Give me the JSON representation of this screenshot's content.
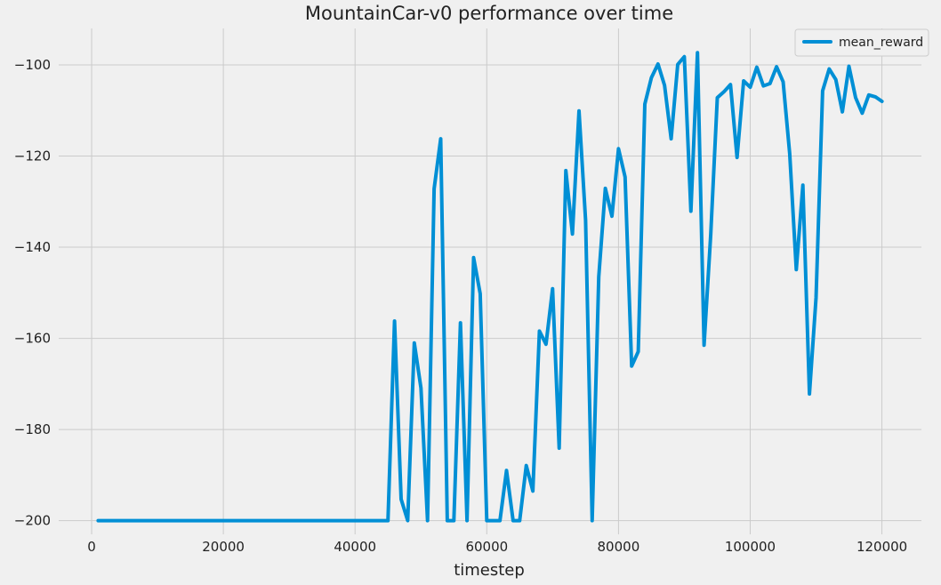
{
  "chart_data": {
    "type": "line",
    "title": "MountainCar-v0 performance over time",
    "xlabel": "timestep",
    "ylabel": "",
    "xlim": [
      -5000,
      126000
    ],
    "ylim": [
      -203,
      -92
    ],
    "grid": true,
    "legend": "top-right",
    "xticks": [
      0,
      20000,
      40000,
      60000,
      80000,
      100000,
      120000
    ],
    "yticks": [
      -200,
      -180,
      -160,
      -140,
      -120,
      -100
    ],
    "xtick_labels": [
      "0",
      "20000",
      "40000",
      "60000",
      "80000",
      "100000",
      "120000"
    ],
    "ytick_labels": [
      "−200",
      "−180",
      "−160",
      "−140",
      "−120",
      "−100"
    ],
    "series": [
      {
        "name": "mean_reward",
        "color": "#008fd5",
        "x": [
          1000,
          2000,
          3000,
          4000,
          5000,
          6000,
          7000,
          8000,
          9000,
          10000,
          11000,
          12000,
          13000,
          14000,
          15000,
          16000,
          17000,
          18000,
          19000,
          20000,
          21000,
          22000,
          23000,
          24000,
          25000,
          26000,
          27000,
          28000,
          29000,
          30000,
          31000,
          32000,
          33000,
          34000,
          35000,
          36000,
          37000,
          38000,
          39000,
          40000,
          41000,
          42000,
          43000,
          44000,
          45000,
          46000,
          47000,
          48000,
          49000,
          50000,
          51000,
          52000,
          53000,
          54000,
          55000,
          56000,
          57000,
          58000,
          59000,
          60000,
          61000,
          62000,
          63000,
          64000,
          65000,
          66000,
          67000,
          68000,
          69000,
          70000,
          71000,
          72000,
          73000,
          74000,
          75000,
          76000,
          77000,
          78000,
          79000,
          80000,
          81000,
          82000,
          83000,
          84000,
          85000,
          86000,
          87000,
          88000,
          89000,
          90000,
          91000,
          92000,
          93000,
          94000,
          95000,
          96000,
          97000,
          98000,
          99000,
          100000,
          101000,
          102000,
          103000,
          104000,
          105000,
          106000,
          107000,
          108000,
          109000,
          110000,
          111000,
          112000,
          113000,
          114000,
          115000,
          116000,
          117000,
          118000,
          119000,
          120000
        ],
        "y": [
          -200,
          -200,
          -200,
          -200,
          -200,
          -200,
          -200,
          -200,
          -200,
          -200,
          -200,
          -200,
          -200,
          -200,
          -200,
          -200,
          -200,
          -200,
          -200,
          -200,
          -200,
          -200,
          -200,
          -200,
          -200,
          -200,
          -200,
          -200,
          -200,
          -200,
          -200,
          -200,
          -200,
          -200,
          -200,
          -200,
          -200,
          -200,
          -200,
          -200,
          -200,
          -200,
          -200,
          -200,
          -200,
          -156.2,
          -195.3,
          -200,
          -161,
          -170.9,
          -200,
          -127.2,
          -116.2,
          -200,
          -200,
          -156.6,
          -200,
          -142.3,
          -150.2,
          -200,
          -200,
          -200,
          -189,
          -200,
          -200,
          -187.9,
          -193.5,
          -158.4,
          -161.3,
          -149.1,
          -184.1,
          -123.2,
          -137.1,
          -110.1,
          -134.1,
          -200,
          -146.5,
          -127.1,
          -133.2,
          -118.4,
          -124.6,
          -166.1,
          -162.9,
          -108.6,
          -102.8,
          -99.8,
          -104.5,
          -116.2,
          -99.9,
          -98.2,
          -132.1,
          -97.3,
          -161.5,
          -137.2,
          -107.2,
          -105.9,
          -104.3,
          -120.3,
          -103.5,
          -104.9,
          -100.5,
          -104.6,
          -104.1,
          -100.4,
          -103.7,
          -119.5,
          -144.9,
          -126.4,
          -172.2,
          -151.1,
          -105.7,
          -100.9,
          -103.2,
          -110.3,
          -100.3,
          -107.2,
          -110.6,
          -106.6,
          -107,
          -108
        ]
      }
    ]
  }
}
